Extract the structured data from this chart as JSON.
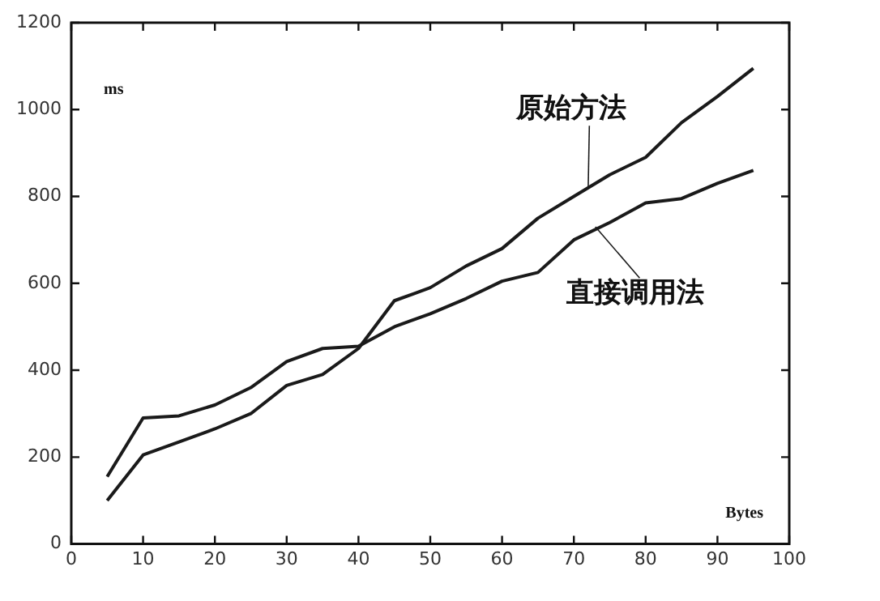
{
  "chart_data": {
    "type": "line",
    "xlabel": "Bytes",
    "ylabel": "ms",
    "x": [
      5,
      10,
      15,
      20,
      25,
      30,
      35,
      40,
      45,
      50,
      55,
      60,
      65,
      70,
      75,
      80,
      85,
      90,
      95
    ],
    "series": [
      {
        "name": "原始方法",
        "color": "#1a1a1a",
        "values": [
          100,
          205,
          235,
          265,
          300,
          365,
          390,
          450,
          560,
          590,
          640,
          680,
          750,
          800,
          850,
          890,
          970,
          1030,
          1095
        ]
      },
      {
        "name": "直接调用法",
        "color": "#1a1a1a",
        "values": [
          155,
          290,
          295,
          320,
          360,
          420,
          450,
          455,
          500,
          530,
          565,
          605,
          625,
          700,
          740,
          785,
          795,
          830,
          860
        ]
      }
    ],
    "xlim": [
      0,
      100
    ],
    "xticks": [
      0,
      10,
      20,
      30,
      40,
      50,
      60,
      70,
      80,
      90,
      100
    ],
    "ylim": [
      0,
      1200
    ],
    "yticks": [
      0,
      200,
      400,
      600,
      800,
      1000,
      1200
    ],
    "grid": false,
    "legend": "right",
    "marker": "none",
    "line_style": "solid"
  }
}
